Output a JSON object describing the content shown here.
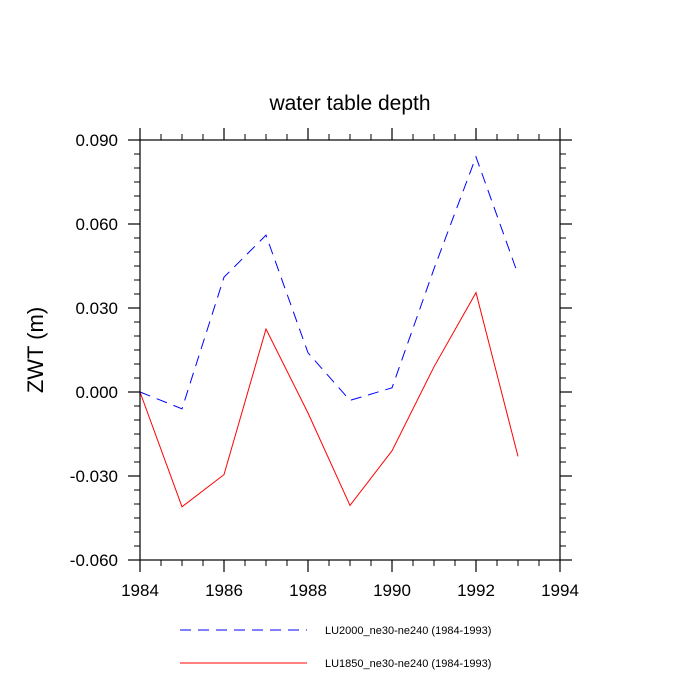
{
  "chart_data": {
    "type": "line",
    "title": "water table depth",
    "xlabel": "",
    "ylabel": "ZWT  (m)",
    "xlim": [
      1984,
      1994
    ],
    "ylim": [
      -0.06,
      0.09
    ],
    "x_ticks": [
      1984,
      1986,
      1988,
      1990,
      1992,
      1994
    ],
    "y_ticks": [
      -0.06,
      -0.03,
      0.0,
      0.03,
      0.06,
      0.09
    ],
    "x_tick_labels": [
      "1984",
      "1986",
      "1988",
      "1990",
      "1992",
      "1994"
    ],
    "y_tick_labels": [
      "-0.060",
      "-0.030",
      "0.000",
      "0.030",
      "0.060",
      "0.090"
    ],
    "x_minor_step": 0.5,
    "y_minor_step": 0.005,
    "grid": false,
    "legend_position": "bottom",
    "x": [
      1984,
      1985,
      1986,
      1987,
      1988,
      1989,
      1990,
      1991,
      1992,
      1993
    ],
    "series": [
      {
        "name": "LU2000_ne30-ne240 (1984-1993)",
        "color": "#0000ff",
        "dash": "dashed",
        "values": [
          0.0,
          -0.006,
          0.041,
          0.056,
          0.014,
          -0.003,
          0.0015,
          0.044,
          0.084,
          0.042
        ]
      },
      {
        "name": "LU1850_ne30-ne240 (1984-1993)",
        "color": "#ff0000",
        "dash": "solid",
        "values": [
          0.0,
          -0.041,
          -0.0295,
          0.0225,
          -0.0075,
          -0.0405,
          -0.021,
          0.009,
          0.0355,
          -0.023
        ]
      }
    ]
  }
}
